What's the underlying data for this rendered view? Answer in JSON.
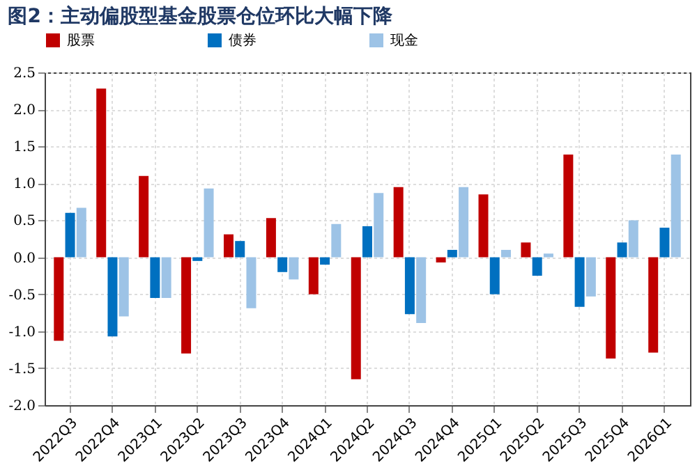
{
  "chart_data": {
    "type": "bar",
    "title": "图2：主动偏股型基金股票仓位环比大幅下降",
    "categories": [
      "2022Q3",
      "2022Q4",
      "2023Q1",
      "2023Q2",
      "2023Q3",
      "2023Q4",
      "2024Q1",
      "2024Q2",
      "2024Q3",
      "2024Q4",
      "2025Q1",
      "2025Q2",
      "2025Q3",
      "2025Q4",
      "2026Q1"
    ],
    "series": [
      {
        "name": "股票",
        "color": "#c00000",
        "values": [
          -1.13,
          2.28,
          1.1,
          -1.3,
          0.31,
          0.53,
          -0.5,
          -1.65,
          0.95,
          -0.07,
          0.85,
          0.2,
          1.39,
          -1.37,
          -1.29
        ]
      },
      {
        "name": "债券",
        "color": "#0070c0",
        "values": [
          0.6,
          -1.07,
          -0.55,
          -0.05,
          0.22,
          -0.2,
          -0.1,
          0.42,
          -0.77,
          0.1,
          -0.5,
          -0.25,
          -0.67,
          0.2,
          0.4
        ]
      },
      {
        "name": "现金",
        "color": "#9dc3e6",
        "values": [
          0.67,
          -0.8,
          -0.55,
          0.93,
          -0.69,
          -0.3,
          0.45,
          0.87,
          -0.89,
          0.95,
          0.1,
          0.05,
          -0.53,
          0.5,
          1.39
        ]
      }
    ],
    "ylim": [
      -2.0,
      2.5
    ],
    "yticks": [
      {
        "value": -2.0,
        "label": "-2.0"
      },
      {
        "value": -1.5,
        "label": "-1.5"
      },
      {
        "value": -1.0,
        "label": "-1.0"
      },
      {
        "value": -0.5,
        "label": "-0.5"
      },
      {
        "value": 0,
        "label": "0.0"
      },
      {
        "value": 0.5,
        "label": "0.5"
      },
      {
        "value": 1.0,
        "label": "1.0"
      },
      {
        "value": 1.5,
        "label": "1.5"
      },
      {
        "value": 2.0,
        "label": "2.0"
      },
      {
        "value": 2.5,
        "label": "2.5"
      }
    ],
    "grid": true,
    "legend": "top"
  }
}
